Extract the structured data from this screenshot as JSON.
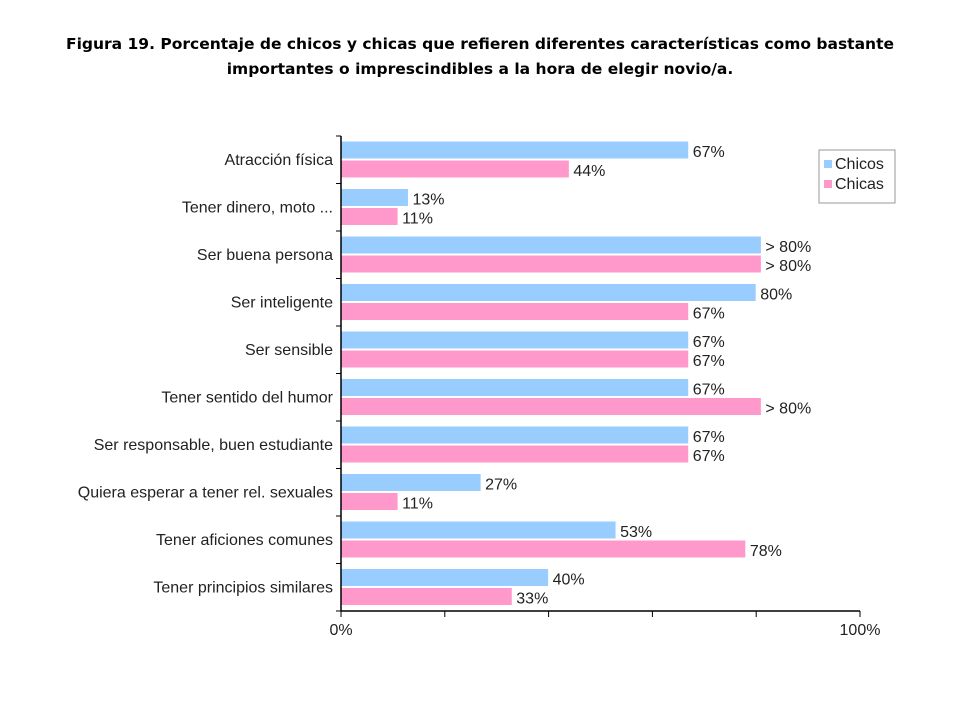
{
  "title_line1": "Figura 19.  Porcentaje de chicos y chicas que refieren diferentes características como bastante",
  "title_line2": "importantes o imprescindibles a la hora de elegir novio/a.",
  "chart_data": {
    "type": "bar",
    "orientation": "horizontal",
    "title": "Figura 19.  Porcentaje de chicos y chicas que refieren diferentes características como bastante importantes o imprescindibles a la hora de elegir novio/a.",
    "categories": [
      "Atracción física",
      "Tener dinero, moto ...",
      "Ser buena persona",
      "Ser inteligente",
      "Ser sensible",
      "Tener sentido del humor",
      "Ser responsable, buen estudiante",
      "Quiera esperar a tener rel. sexuales",
      "Tener aficiones comunes",
      "Tener principios similares"
    ],
    "series": [
      {
        "name": "Chicos",
        "color": "#99ccff",
        "values": [
          67,
          13,
          81,
          80,
          67,
          67,
          67,
          27,
          53,
          40
        ],
        "labels": [
          "67%",
          "13%",
          "> 80%",
          "80%",
          "67%",
          "67%",
          "67%",
          "27%",
          "53%",
          "40%"
        ]
      },
      {
        "name": "Chicas",
        "color": "#ff99cc",
        "values": [
          44,
          11,
          81,
          67,
          67,
          81,
          67,
          11,
          78,
          33
        ],
        "labels": [
          "44%",
          "11%",
          "> 80%",
          "67%",
          "67%",
          "> 80%",
          "67%",
          "11%",
          "78%",
          "33%"
        ]
      }
    ],
    "xlim": [
      0,
      100
    ],
    "x_tick_labels": [
      "0%",
      "100%"
    ],
    "legend": "top-right",
    "grid": false
  }
}
